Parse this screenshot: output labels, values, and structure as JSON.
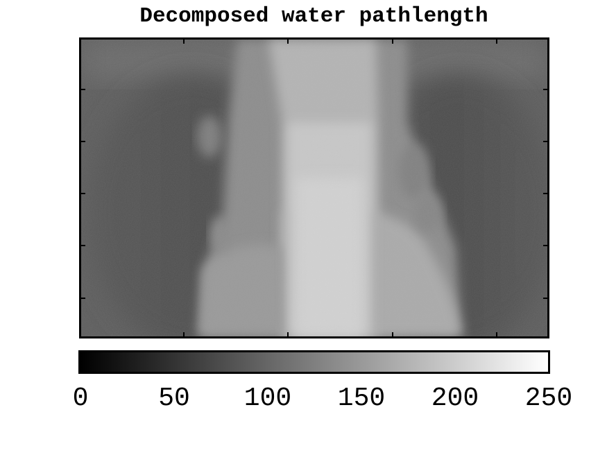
{
  "figure": {
    "title": "Decomposed water pathlength"
  },
  "colorbar": {
    "colormap": "gray",
    "range": [
      0,
      250
    ],
    "ticks": [
      "0",
      "50",
      "100",
      "150",
      "200",
      "250"
    ]
  },
  "colors": {
    "background": "#ffffff",
    "axes": "#000000"
  }
}
